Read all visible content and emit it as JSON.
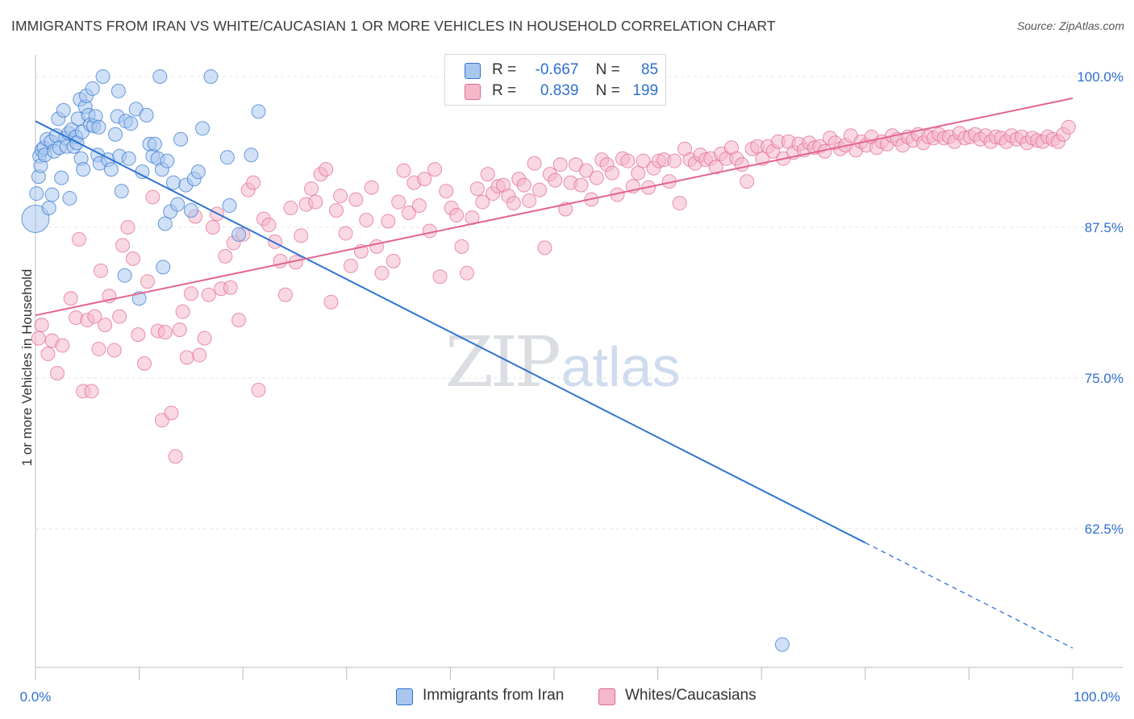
{
  "title": "IMMIGRANTS FROM IRAN VS WHITE/CAUCASIAN 1 OR MORE VEHICLES IN HOUSEHOLD CORRELATION CHART",
  "source": "Source: ZipAtlas.com",
  "watermark": {
    "zip": "ZIP",
    "atlas": "atlas"
  },
  "colors": {
    "blue": "#2f73d1",
    "blue_fill": "#a9c7ee",
    "pink": "#e2658f",
    "pink_fill": "#f4b8ca",
    "grid": "#e3e3e3",
    "axis_label": "#2f6fd0"
  },
  "legend": {
    "rows": [
      {
        "r_label": "R =",
        "r_value": "-0.667",
        "n_label": "N =",
        "n_value": "85"
      },
      {
        "r_label": "R =",
        "r_value": "0.839",
        "n_label": "N =",
        "n_value": "199"
      }
    ]
  },
  "bottom_legend": [
    "Immigrants from Iran",
    "Whites/Caucasians"
  ],
  "chart_data": {
    "type": "scatter",
    "title": "IMMIGRANTS FROM IRAN VS WHITE/CAUCASIAN 1 OR MORE VEHICLES IN HOUSEHOLD CORRELATION CHART",
    "xlabel": "",
    "ylabel": "1 or more Vehicles in Household",
    "xlim": [
      0,
      100
    ],
    "ylim": [
      51,
      101
    ],
    "x_tick_labels": [
      "0.0%",
      "100.0%"
    ],
    "y_ticks": [
      62.5,
      75.0,
      87.5,
      100.0
    ],
    "y_tick_labels": [
      "62.5%",
      "75.0%",
      "87.5%",
      "100.0%"
    ],
    "grid": true,
    "series": [
      {
        "name": "Immigrants from Iran",
        "color": "#2f73d1",
        "r": -0.667,
        "n": 85,
        "trend": {
          "x0": 0.0,
          "y0": 96.3,
          "x1": 100.0,
          "y1": 52.6,
          "solid_until_x": 80.0
        },
        "points": [
          [
            0.0,
            88.2
          ],
          [
            0.1,
            90.3
          ],
          [
            0.3,
            91.7
          ],
          [
            0.4,
            93.4
          ],
          [
            0.5,
            92.6
          ],
          [
            0.6,
            93.9
          ],
          [
            0.8,
            94.1
          ],
          [
            0.9,
            93.5
          ],
          [
            1.1,
            94.8
          ],
          [
            1.3,
            89.1
          ],
          [
            1.5,
            94.6
          ],
          [
            1.6,
            90.2
          ],
          [
            1.8,
            93.8
          ],
          [
            2.0,
            95.1
          ],
          [
            2.2,
            96.5
          ],
          [
            2.3,
            94.1
          ],
          [
            2.5,
            91.6
          ],
          [
            2.7,
            97.2
          ],
          [
            2.9,
            94.9
          ],
          [
            3.0,
            94.2
          ],
          [
            3.2,
            95.3
          ],
          [
            3.3,
            89.9
          ],
          [
            3.5,
            95.6
          ],
          [
            3.7,
            94.2
          ],
          [
            3.9,
            95.0
          ],
          [
            4.0,
            94.5
          ],
          [
            4.1,
            96.5
          ],
          [
            4.3,
            98.1
          ],
          [
            4.4,
            93.2
          ],
          [
            4.5,
            95.4
          ],
          [
            4.6,
            92.3
          ],
          [
            4.8,
            97.5
          ],
          [
            4.9,
            98.4
          ],
          [
            5.1,
            96.8
          ],
          [
            5.3,
            96.0
          ],
          [
            5.5,
            99.0
          ],
          [
            5.6,
            95.9
          ],
          [
            5.8,
            96.7
          ],
          [
            6.0,
            93.5
          ],
          [
            6.1,
            95.8
          ],
          [
            6.2,
            92.8
          ],
          [
            6.5,
            100.0
          ],
          [
            7.0,
            93.1
          ],
          [
            7.3,
            92.3
          ],
          [
            7.7,
            95.2
          ],
          [
            7.9,
            96.7
          ],
          [
            8.0,
            98.8
          ],
          [
            8.1,
            93.4
          ],
          [
            8.3,
            90.5
          ],
          [
            8.6,
            83.5
          ],
          [
            8.7,
            96.3
          ],
          [
            9.0,
            93.2
          ],
          [
            9.2,
            96.1
          ],
          [
            9.7,
            97.3
          ],
          [
            10.0,
            81.6
          ],
          [
            10.3,
            92.1
          ],
          [
            10.7,
            96.8
          ],
          [
            11.0,
            94.4
          ],
          [
            11.3,
            93.4
          ],
          [
            11.5,
            94.4
          ],
          [
            11.8,
            93.2
          ],
          [
            12.0,
            100.0
          ],
          [
            12.2,
            92.3
          ],
          [
            12.3,
            84.2
          ],
          [
            12.5,
            87.8
          ],
          [
            12.7,
            93.0
          ],
          [
            13.0,
            88.8
          ],
          [
            13.3,
            91.2
          ],
          [
            13.7,
            89.4
          ],
          [
            14.0,
            94.8
          ],
          [
            14.5,
            91.0
          ],
          [
            15.0,
            88.9
          ],
          [
            15.3,
            91.5
          ],
          [
            15.7,
            92.1
          ],
          [
            16.1,
            95.7
          ],
          [
            16.9,
            100.0
          ],
          [
            18.5,
            93.3
          ],
          [
            18.7,
            89.3
          ],
          [
            19.6,
            86.9
          ],
          [
            20.8,
            93.5
          ],
          [
            21.5,
            97.1
          ],
          [
            72.0,
            52.9
          ]
        ]
      },
      {
        "name": "Whites/Caucasians",
        "color": "#e2658f",
        "r": 0.839,
        "n": 199,
        "trend": {
          "x0": 0.0,
          "y0": 80.2,
          "x1": 100.0,
          "y1": 98.2
        },
        "points": [
          [
            0.3,
            78.3
          ],
          [
            0.6,
            79.4
          ],
          [
            1.2,
            77.0
          ],
          [
            1.6,
            78.1
          ],
          [
            2.1,
            75.4
          ],
          [
            2.6,
            77.7
          ],
          [
            3.4,
            81.6
          ],
          [
            3.9,
            80.0
          ],
          [
            4.2,
            86.5
          ],
          [
            4.6,
            73.9
          ],
          [
            5.0,
            79.8
          ],
          [
            5.4,
            73.9
          ],
          [
            5.7,
            80.1
          ],
          [
            6.1,
            77.4
          ],
          [
            6.3,
            83.9
          ],
          [
            6.7,
            79.4
          ],
          [
            7.1,
            81.8
          ],
          [
            7.6,
            77.3
          ],
          [
            8.1,
            80.1
          ],
          [
            8.4,
            86.0
          ],
          [
            8.9,
            87.5
          ],
          [
            9.4,
            84.9
          ],
          [
            9.9,
            78.6
          ],
          [
            10.5,
            76.2
          ],
          [
            10.8,
            83.0
          ],
          [
            11.3,
            90.0
          ],
          [
            11.8,
            78.9
          ],
          [
            12.2,
            71.5
          ],
          [
            12.5,
            78.8
          ],
          [
            13.1,
            72.1
          ],
          [
            13.5,
            68.5
          ],
          [
            13.9,
            79.0
          ],
          [
            14.2,
            80.5
          ],
          [
            14.6,
            76.7
          ],
          [
            15.0,
            82.0
          ],
          [
            15.4,
            88.4
          ],
          [
            15.8,
            76.9
          ],
          [
            16.3,
            78.3
          ],
          [
            16.7,
            81.9
          ],
          [
            17.1,
            87.5
          ],
          [
            17.5,
            88.6
          ],
          [
            17.9,
            82.4
          ],
          [
            18.3,
            85.1
          ],
          [
            18.8,
            82.5
          ],
          [
            19.1,
            86.2
          ],
          [
            19.6,
            79.8
          ],
          [
            20.0,
            86.9
          ],
          [
            20.5,
            90.6
          ],
          [
            21.0,
            91.2
          ],
          [
            21.5,
            74.0
          ],
          [
            22.0,
            88.2
          ],
          [
            22.5,
            87.7
          ],
          [
            23.1,
            86.3
          ],
          [
            23.6,
            84.7
          ],
          [
            24.1,
            81.9
          ],
          [
            24.6,
            89.1
          ],
          [
            25.1,
            84.6
          ],
          [
            25.6,
            86.8
          ],
          [
            26.1,
            89.4
          ],
          [
            26.6,
            90.7
          ],
          [
            27.0,
            89.6
          ],
          [
            27.5,
            91.9
          ],
          [
            28.0,
            92.3
          ],
          [
            28.5,
            81.3
          ],
          [
            29.0,
            88.9
          ],
          [
            29.4,
            90.1
          ],
          [
            29.9,
            87.0
          ],
          [
            30.4,
            84.3
          ],
          [
            30.9,
            89.8
          ],
          [
            31.4,
            85.5
          ],
          [
            31.9,
            88.1
          ],
          [
            32.4,
            90.8
          ],
          [
            32.9,
            85.9
          ],
          [
            33.4,
            83.7
          ],
          [
            34.0,
            88.0
          ],
          [
            34.5,
            84.7
          ],
          [
            35.0,
            89.6
          ],
          [
            35.5,
            92.2
          ],
          [
            36.0,
            88.7
          ],
          [
            36.5,
            91.2
          ],
          [
            37.0,
            89.3
          ],
          [
            37.5,
            91.5
          ],
          [
            38.0,
            87.2
          ],
          [
            38.5,
            92.3
          ],
          [
            39.0,
            83.4
          ],
          [
            39.6,
            90.5
          ],
          [
            40.1,
            89.1
          ],
          [
            40.6,
            88.5
          ],
          [
            41.1,
            85.9
          ],
          [
            41.6,
            83.7
          ],
          [
            42.1,
            88.3
          ],
          [
            42.6,
            90.7
          ],
          [
            43.1,
            89.6
          ],
          [
            43.6,
            91.9
          ],
          [
            44.1,
            90.3
          ],
          [
            44.6,
            90.9
          ],
          [
            45.1,
            91.0
          ],
          [
            45.6,
            90.1
          ],
          [
            46.1,
            89.5
          ],
          [
            46.6,
            91.5
          ],
          [
            47.1,
            91.0
          ],
          [
            47.6,
            89.7
          ],
          [
            48.1,
            92.8
          ],
          [
            48.6,
            90.6
          ],
          [
            49.1,
            85.8
          ],
          [
            49.6,
            91.9
          ],
          [
            50.1,
            91.4
          ],
          [
            50.6,
            92.7
          ],
          [
            51.1,
            89.0
          ],
          [
            51.6,
            91.2
          ],
          [
            52.1,
            92.7
          ],
          [
            52.6,
            91.0
          ],
          [
            53.1,
            92.2
          ],
          [
            53.6,
            89.8
          ],
          [
            54.1,
            91.6
          ],
          [
            54.6,
            93.1
          ],
          [
            55.1,
            92.7
          ],
          [
            55.6,
            92.0
          ],
          [
            56.1,
            90.2
          ],
          [
            56.6,
            93.2
          ],
          [
            57.1,
            93.0
          ],
          [
            57.6,
            90.9
          ],
          [
            58.1,
            92.0
          ],
          [
            58.6,
            93.0
          ],
          [
            59.1,
            90.8
          ],
          [
            59.6,
            92.4
          ],
          [
            60.1,
            93.0
          ],
          [
            60.6,
            93.1
          ],
          [
            61.1,
            91.3
          ],
          [
            61.6,
            93.0
          ],
          [
            62.1,
            89.5
          ],
          [
            62.6,
            94.0
          ],
          [
            63.1,
            93.1
          ],
          [
            63.6,
            92.8
          ],
          [
            64.1,
            93.5
          ],
          [
            64.6,
            93.1
          ],
          [
            65.1,
            93.2
          ],
          [
            65.6,
            92.5
          ],
          [
            66.1,
            93.6
          ],
          [
            66.6,
            93.2
          ],
          [
            67.1,
            94.1
          ],
          [
            67.6,
            93.2
          ],
          [
            68.1,
            92.7
          ],
          [
            68.6,
            91.3
          ],
          [
            69.1,
            94.0
          ],
          [
            69.6,
            94.2
          ],
          [
            70.1,
            93.2
          ],
          [
            70.6,
            94.2
          ],
          [
            71.1,
            93.8
          ],
          [
            71.6,
            94.6
          ],
          [
            72.1,
            93.2
          ],
          [
            72.6,
            94.6
          ],
          [
            73.1,
            93.7
          ],
          [
            73.6,
            94.4
          ],
          [
            74.1,
            93.9
          ],
          [
            74.6,
            94.5
          ],
          [
            75.1,
            94.1
          ],
          [
            75.6,
            94.2
          ],
          [
            76.1,
            93.8
          ],
          [
            76.6,
            94.9
          ],
          [
            77.1,
            94.5
          ],
          [
            77.6,
            94.0
          ],
          [
            78.1,
            94.3
          ],
          [
            78.6,
            95.1
          ],
          [
            79.1,
            93.9
          ],
          [
            79.6,
            94.6
          ],
          [
            80.1,
            94.3
          ],
          [
            80.6,
            95.0
          ],
          [
            81.1,
            94.1
          ],
          [
            81.6,
            94.6
          ],
          [
            82.1,
            94.4
          ],
          [
            82.6,
            95.1
          ],
          [
            83.1,
            94.8
          ],
          [
            83.6,
            94.3
          ],
          [
            84.1,
            95.0
          ],
          [
            84.6,
            94.7
          ],
          [
            85.1,
            95.2
          ],
          [
            85.6,
            94.5
          ],
          [
            86.1,
            95.0
          ],
          [
            86.6,
            94.9
          ],
          [
            87.1,
            95.2
          ],
          [
            87.6,
            94.9
          ],
          [
            88.1,
            95.0
          ],
          [
            88.6,
            94.6
          ],
          [
            89.1,
            95.3
          ],
          [
            89.6,
            94.9
          ],
          [
            90.1,
            95.0
          ],
          [
            90.6,
            95.2
          ],
          [
            91.1,
            94.8
          ],
          [
            91.6,
            95.1
          ],
          [
            92.1,
            94.6
          ],
          [
            92.6,
            95.0
          ],
          [
            93.1,
            94.9
          ],
          [
            93.6,
            94.6
          ],
          [
            94.1,
            95.1
          ],
          [
            94.6,
            94.8
          ],
          [
            95.1,
            95.0
          ],
          [
            95.6,
            94.5
          ],
          [
            96.1,
            94.9
          ],
          [
            96.6,
            94.7
          ],
          [
            97.1,
            94.6
          ],
          [
            97.6,
            95.0
          ],
          [
            98.1,
            94.8
          ],
          [
            98.6,
            94.6
          ],
          [
            99.1,
            95.2
          ],
          [
            99.6,
            95.8
          ]
        ]
      }
    ]
  }
}
